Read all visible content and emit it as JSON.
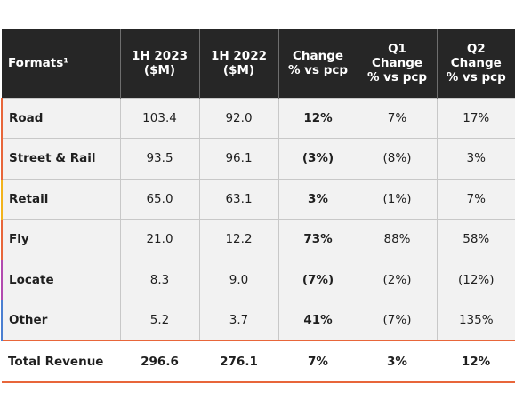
{
  "table": {
    "headers": [
      {
        "lines": [
          "Formats¹"
        ]
      },
      {
        "lines": [
          "1H 2023",
          "($M)"
        ]
      },
      {
        "lines": [
          "1H 2022",
          "($M)"
        ]
      },
      {
        "lines": [
          "Change",
          "% vs pcp"
        ]
      },
      {
        "lines": [
          "Q1",
          "Change",
          "% vs pcp"
        ]
      },
      {
        "lines": [
          "Q2",
          "Change",
          "% vs pcp"
        ]
      }
    ],
    "rows": [
      {
        "format": "Road",
        "h1_2023": "103.4",
        "h1_2022": "92.0",
        "change": "12%",
        "q1": "7%",
        "q2": "17%",
        "accent": "#e8663a"
      },
      {
        "format": "Street & Rail",
        "h1_2023": "93.5",
        "h1_2022": "96.1",
        "change": "(3%)",
        "q1": "(8%)",
        "q2": "3%",
        "accent": "#e8663a"
      },
      {
        "format": "Retail",
        "h1_2023": "65.0",
        "h1_2022": "63.1",
        "change": "3%",
        "q1": "(1%)",
        "q2": "7%",
        "accent": "#f2b31c"
      },
      {
        "format": "Fly",
        "h1_2023": "21.0",
        "h1_2022": "12.2",
        "change": "73%",
        "q1": "88%",
        "q2": "58%",
        "accent": "#e8663a"
      },
      {
        "format": "Locate",
        "h1_2023": "8.3",
        "h1_2022": "9.0",
        "change": "(7%)",
        "q1": "(2%)",
        "q2": "(12%)",
        "accent": "#b24bb0"
      },
      {
        "format": "Other",
        "h1_2023": "5.2",
        "h1_2022": "3.7",
        "change": "41%",
        "q1": "(7%)",
        "q2": "135%",
        "accent": "#4a7fd1"
      }
    ],
    "total": {
      "format": "Total Revenue",
      "h1_2023": "296.6",
      "h1_2022": "276.1",
      "change": "7%",
      "q1": "3%",
      "q2": "12%"
    }
  },
  "colors": {
    "header_bg": "#262626",
    "row_bg": "#f2f2f2",
    "total_border": "#e8663a"
  }
}
